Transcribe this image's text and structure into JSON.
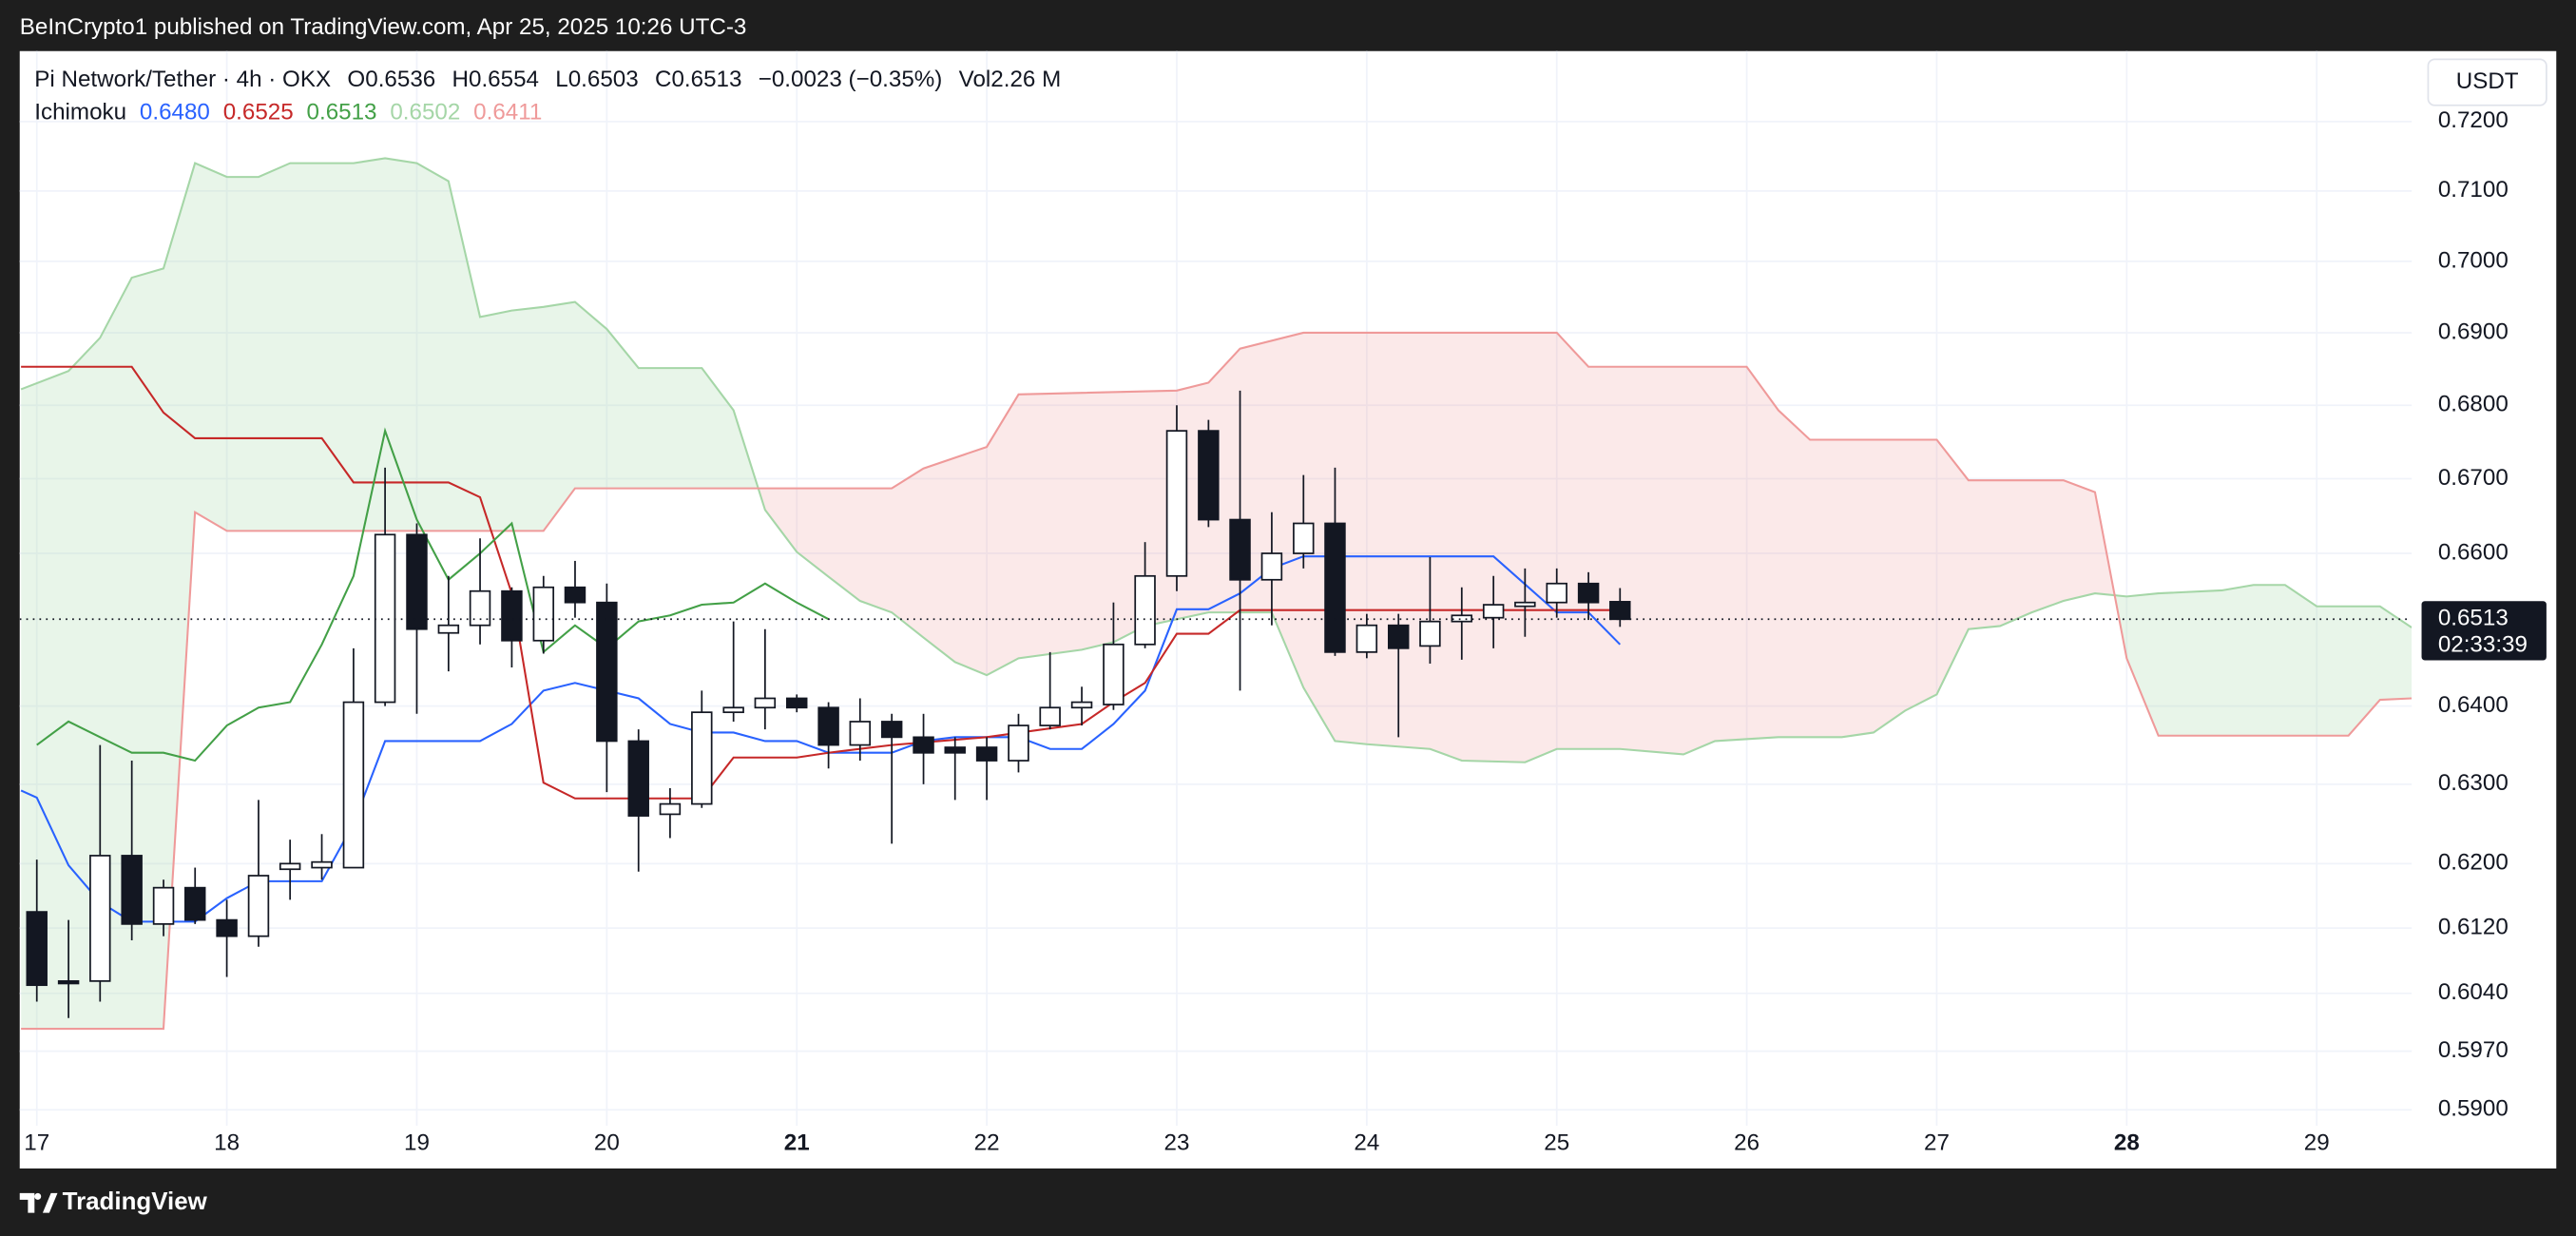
{
  "header": {
    "published": "BeInCrypto1 published on TradingView.com, Apr 25, 2025 10:26 UTC-3",
    "symbol": "Pi Network/Tether · 4h · OKX",
    "stats": [
      {
        "key": "O",
        "value": "0.6536"
      },
      {
        "key": "H",
        "value": "0.6554"
      },
      {
        "key": "L",
        "value": "0.6503"
      },
      {
        "key": "C",
        "value": "0.6513"
      }
    ],
    "change": "−0.0023 (−0.35%)",
    "volume": {
      "key": "Vol",
      "value": "2.26 M"
    }
  },
  "footer": {
    "brand": "TradingView"
  },
  "chart_data": {
    "type": "candlestick",
    "currency": "USDT",
    "indicator": "Ichimoku",
    "log_scale": true,
    "grid": true,
    "xlim": [
      16.91,
      29.5
    ],
    "xticks": [
      17,
      18,
      19,
      20,
      21,
      22,
      23,
      24,
      25,
      26,
      27,
      28,
      29
    ],
    "xticks_bold": [
      21,
      28
    ],
    "ylim": [
      0.5881,
      0.7303
    ],
    "yticks": [
      {
        "value": 0.72,
        "label": "0.7200"
      },
      {
        "value": 0.71,
        "label": "0.7100"
      },
      {
        "value": 0.7,
        "label": "0.7000"
      },
      {
        "value": 0.69,
        "label": "0.6900"
      },
      {
        "value": 0.68,
        "label": "0.6800"
      },
      {
        "value": 0.67,
        "label": "0.6700"
      },
      {
        "value": 0.66,
        "label": "0.6600"
      },
      {
        "value": 0.64,
        "label": "0.6400"
      },
      {
        "value": 0.63,
        "label": "0.6300"
      },
      {
        "value": 0.62,
        "label": "0.6200"
      },
      {
        "value": 0.612,
        "label": "0.6120"
      },
      {
        "value": 0.604,
        "label": "0.6040"
      },
      {
        "value": 0.597,
        "label": "0.5970"
      },
      {
        "value": 0.59,
        "label": "0.5900"
      }
    ],
    "last_price": {
      "value": 0.6513,
      "label": "0.6513"
    },
    "countdown": "02:33:39",
    "x": [
      17,
      17.167,
      17.333,
      17.5,
      17.667,
      17.833,
      18,
      18.167,
      18.333,
      18.5,
      18.667,
      18.833,
      19,
      19.167,
      19.333,
      19.5,
      19.667,
      19.833,
      20,
      20.167,
      20.333,
      20.5,
      20.667,
      20.833,
      21,
      21.167,
      21.333,
      21.5,
      21.667,
      21.833,
      22,
      22.167,
      22.333,
      22.5,
      22.667,
      22.833,
      23,
      23.167,
      23.333,
      23.5,
      23.667,
      23.833,
      24,
      24.167,
      24.333,
      24.5,
      24.667,
      24.833,
      25,
      25.167,
      25.333
    ],
    "open": [
      0.614,
      0.6055,
      0.6055,
      0.621,
      0.6125,
      0.617,
      0.613,
      0.611,
      0.6193,
      0.6195,
      0.6195,
      0.6405,
      0.6625,
      0.6495,
      0.6505,
      0.655,
      0.6485,
      0.6555,
      0.6535,
      0.6355,
      0.6262,
      0.6275,
      0.6392,
      0.6398,
      0.641,
      0.6398,
      0.635,
      0.638,
      0.636,
      0.6347,
      0.6347,
      0.633,
      0.6375,
      0.6398,
      0.6402,
      0.648,
      0.657,
      0.6765,
      0.6645,
      0.6565,
      0.66,
      0.664,
      0.647,
      0.6505,
      0.6478,
      0.651,
      0.6515,
      0.653,
      0.6535,
      0.656,
      0.6536
    ],
    "high": [
      0.6205,
      0.613,
      0.635,
      0.633,
      0.618,
      0.6195,
      0.6155,
      0.628,
      0.623,
      0.6237,
      0.6475,
      0.6715,
      0.664,
      0.657,
      0.662,
      0.6555,
      0.657,
      0.659,
      0.656,
      0.637,
      0.6295,
      0.642,
      0.651,
      0.65,
      0.6415,
      0.6405,
      0.641,
      0.639,
      0.639,
      0.636,
      0.636,
      0.639,
      0.647,
      0.6425,
      0.6535,
      0.6615,
      0.68,
      0.678,
      0.682,
      0.6655,
      0.6705,
      0.6715,
      0.652,
      0.652,
      0.6595,
      0.6555,
      0.657,
      0.658,
      0.658,
      0.6575,
      0.6554
    ],
    "low": [
      0.603,
      0.601,
      0.603,
      0.6105,
      0.611,
      0.6125,
      0.606,
      0.6097,
      0.6155,
      0.618,
      0.6195,
      0.64,
      0.639,
      0.6445,
      0.648,
      0.645,
      0.6468,
      0.6515,
      0.629,
      0.619,
      0.6232,
      0.627,
      0.638,
      0.637,
      0.6392,
      0.632,
      0.633,
      0.6225,
      0.63,
      0.628,
      0.628,
      0.6315,
      0.637,
      0.6375,
      0.6395,
      0.6475,
      0.655,
      0.6635,
      0.642,
      0.6505,
      0.658,
      0.6465,
      0.6462,
      0.636,
      0.6455,
      0.646,
      0.6475,
      0.649,
      0.6515,
      0.6512,
      0.6503
    ],
    "close": [
      0.605,
      0.6052,
      0.621,
      0.6125,
      0.617,
      0.613,
      0.611,
      0.6185,
      0.62,
      0.6202,
      0.6405,
      0.6625,
      0.65,
      0.6505,
      0.655,
      0.6485,
      0.6555,
      0.6535,
      0.6355,
      0.626,
      0.6275,
      0.6392,
      0.6398,
      0.641,
      0.6398,
      0.635,
      0.638,
      0.636,
      0.634,
      0.634,
      0.633,
      0.6375,
      0.6398,
      0.6405,
      0.648,
      0.657,
      0.6765,
      0.6645,
      0.6565,
      0.66,
      0.664,
      0.647,
      0.6505,
      0.6475,
      0.651,
      0.6518,
      0.6532,
      0.6535,
      0.656,
      0.6535,
      0.6513
    ],
    "series": [
      {
        "color": "#2962ff",
        "legend_label": "0.6480",
        "x": [
          16.917,
          17,
          17.167,
          17.333,
          17.5,
          17.833,
          18,
          18.167,
          18.5,
          18.667,
          18.833,
          19.333,
          19.5,
          19.667,
          19.833,
          20,
          20.167,
          20.333,
          20.5,
          20.667,
          20.833,
          21,
          21.167,
          21.5,
          21.667,
          21.833,
          22.167,
          22.333,
          22.5,
          22.667,
          22.833,
          23,
          23.167,
          23.333,
          23.5,
          23.667,
          24.667,
          25,
          25.167,
          25.333
        ],
        "values": [
          0.6292,
          0.6283,
          0.6198,
          0.6152,
          0.6128,
          0.6128,
          0.6157,
          0.6178,
          0.6178,
          0.625,
          0.6355,
          0.6355,
          0.6377,
          0.642,
          0.643,
          0.642,
          0.641,
          0.6377,
          0.6366,
          0.6366,
          0.6355,
          0.6355,
          0.634,
          0.634,
          0.6355,
          0.636,
          0.636,
          0.6345,
          0.6345,
          0.6377,
          0.642,
          0.6526,
          0.6526,
          0.6547,
          0.658,
          0.6596,
          0.6596,
          0.6522,
          0.6522,
          0.648
        ]
      },
      {
        "color": "#c62828",
        "legend_label": "0.6525",
        "x": [
          16.917,
          17.5,
          17.667,
          17.833,
          18.5,
          18.667,
          19.167,
          19.333,
          19.5,
          19.667,
          19.833,
          20.5,
          20.667,
          21,
          21.167,
          21.5,
          22,
          22.5,
          22.667,
          22.833,
          23,
          23.167,
          23.333,
          25.333
        ],
        "values": [
          0.6853,
          0.6853,
          0.679,
          0.6755,
          0.6755,
          0.6695,
          0.6695,
          0.6675,
          0.6547,
          0.6302,
          0.6282,
          0.6282,
          0.6334,
          0.6334,
          0.634,
          0.635,
          0.636,
          0.6377,
          0.6405,
          0.643,
          0.6494,
          0.6494,
          0.6525,
          0.6525
        ]
      },
      {
        "color": "#43a047",
        "legend_label": "0.6513",
        "x": [
          17,
          17.167,
          17.333,
          17.5,
          17.667,
          17.833,
          18,
          18.167,
          18.333,
          18.5,
          18.667,
          18.833,
          19,
          19.167,
          19.333,
          19.5,
          19.667,
          19.833,
          20,
          20.167,
          20.333,
          20.5,
          20.667,
          20.833,
          21,
          21.167
        ],
        "values": [
          0.635,
          0.638,
          0.636,
          0.634,
          0.634,
          0.633,
          0.6375,
          0.6398,
          0.6405,
          0.648,
          0.657,
          0.6765,
          0.6645,
          0.6565,
          0.66,
          0.664,
          0.647,
          0.6505,
          0.6475,
          0.651,
          0.6518,
          0.6532,
          0.6535,
          0.656,
          0.6535,
          0.6513
        ]
      },
      {
        "color": "#a5d6a7",
        "legend_label": "0.6502",
        "x": [
          16.917,
          17.167,
          17.333,
          17.5,
          17.667,
          17.833,
          18,
          18.167,
          18.333,
          18.667,
          18.833,
          19,
          19.167,
          19.333,
          19.5,
          19.667,
          19.833,
          20,
          20.167,
          20.5,
          20.667,
          20.833,
          21,
          21.167,
          21.333,
          21.5,
          21.667,
          21.833,
          22,
          22.167,
          22.5,
          22.667,
          22.833,
          23.167,
          23.5,
          23.667,
          23.833,
          24,
          24.333,
          24.5,
          24.833,
          25,
          25.333,
          25.667,
          25.833,
          26.167,
          26.5,
          26.667,
          26.833,
          27,
          27.167,
          27.333,
          27.5,
          27.667,
          27.833,
          28,
          28.167,
          28.5,
          28.667,
          28.833,
          29,
          29.333,
          29.5
        ],
        "values": [
          0.6822,
          0.6847,
          0.6893,
          0.6977,
          0.699,
          0.714,
          0.712,
          0.712,
          0.714,
          0.714,
          0.7147,
          0.714,
          0.7114,
          0.6922,
          0.6931,
          0.6936,
          0.6943,
          0.6905,
          0.6851,
          0.6851,
          0.6793,
          0.6658,
          0.6602,
          0.6569,
          0.6537,
          0.6522,
          0.6489,
          0.6457,
          0.644,
          0.6462,
          0.6473,
          0.6483,
          0.6504,
          0.6522,
          0.6522,
          0.6424,
          0.6355,
          0.6351,
          0.6345,
          0.633,
          0.6328,
          0.6345,
          0.6345,
          0.6338,
          0.6355,
          0.636,
          0.636,
          0.6366,
          0.6394,
          0.6415,
          0.65,
          0.6504,
          0.6522,
          0.6537,
          0.6547,
          0.6543,
          0.6547,
          0.6551,
          0.6558,
          0.6558,
          0.653,
          0.653,
          0.6502
        ]
      },
      {
        "color": "#ef9a9a",
        "legend_label": "0.6411",
        "x": [
          16.917,
          17.667,
          17.833,
          18,
          19.667,
          19.833,
          21.5,
          21.667,
          22,
          22.167,
          23,
          23.167,
          23.333,
          23.667,
          25,
          25.167,
          26,
          26.167,
          26.333,
          27,
          27.167,
          27.667,
          27.833,
          28,
          28.167,
          29.167,
          29.333,
          29.5
        ],
        "values": [
          0.5997,
          0.5997,
          0.6655,
          0.663,
          0.663,
          0.6687,
          0.6687,
          0.6714,
          0.6743,
          0.6815,
          0.682,
          0.6831,
          0.6878,
          0.69,
          0.69,
          0.6853,
          0.6853,
          0.6793,
          0.6753,
          0.6753,
          0.6698,
          0.6698,
          0.6682,
          0.6462,
          0.6362,
          0.6362,
          0.6408,
          0.641
        ]
      }
    ]
  }
}
